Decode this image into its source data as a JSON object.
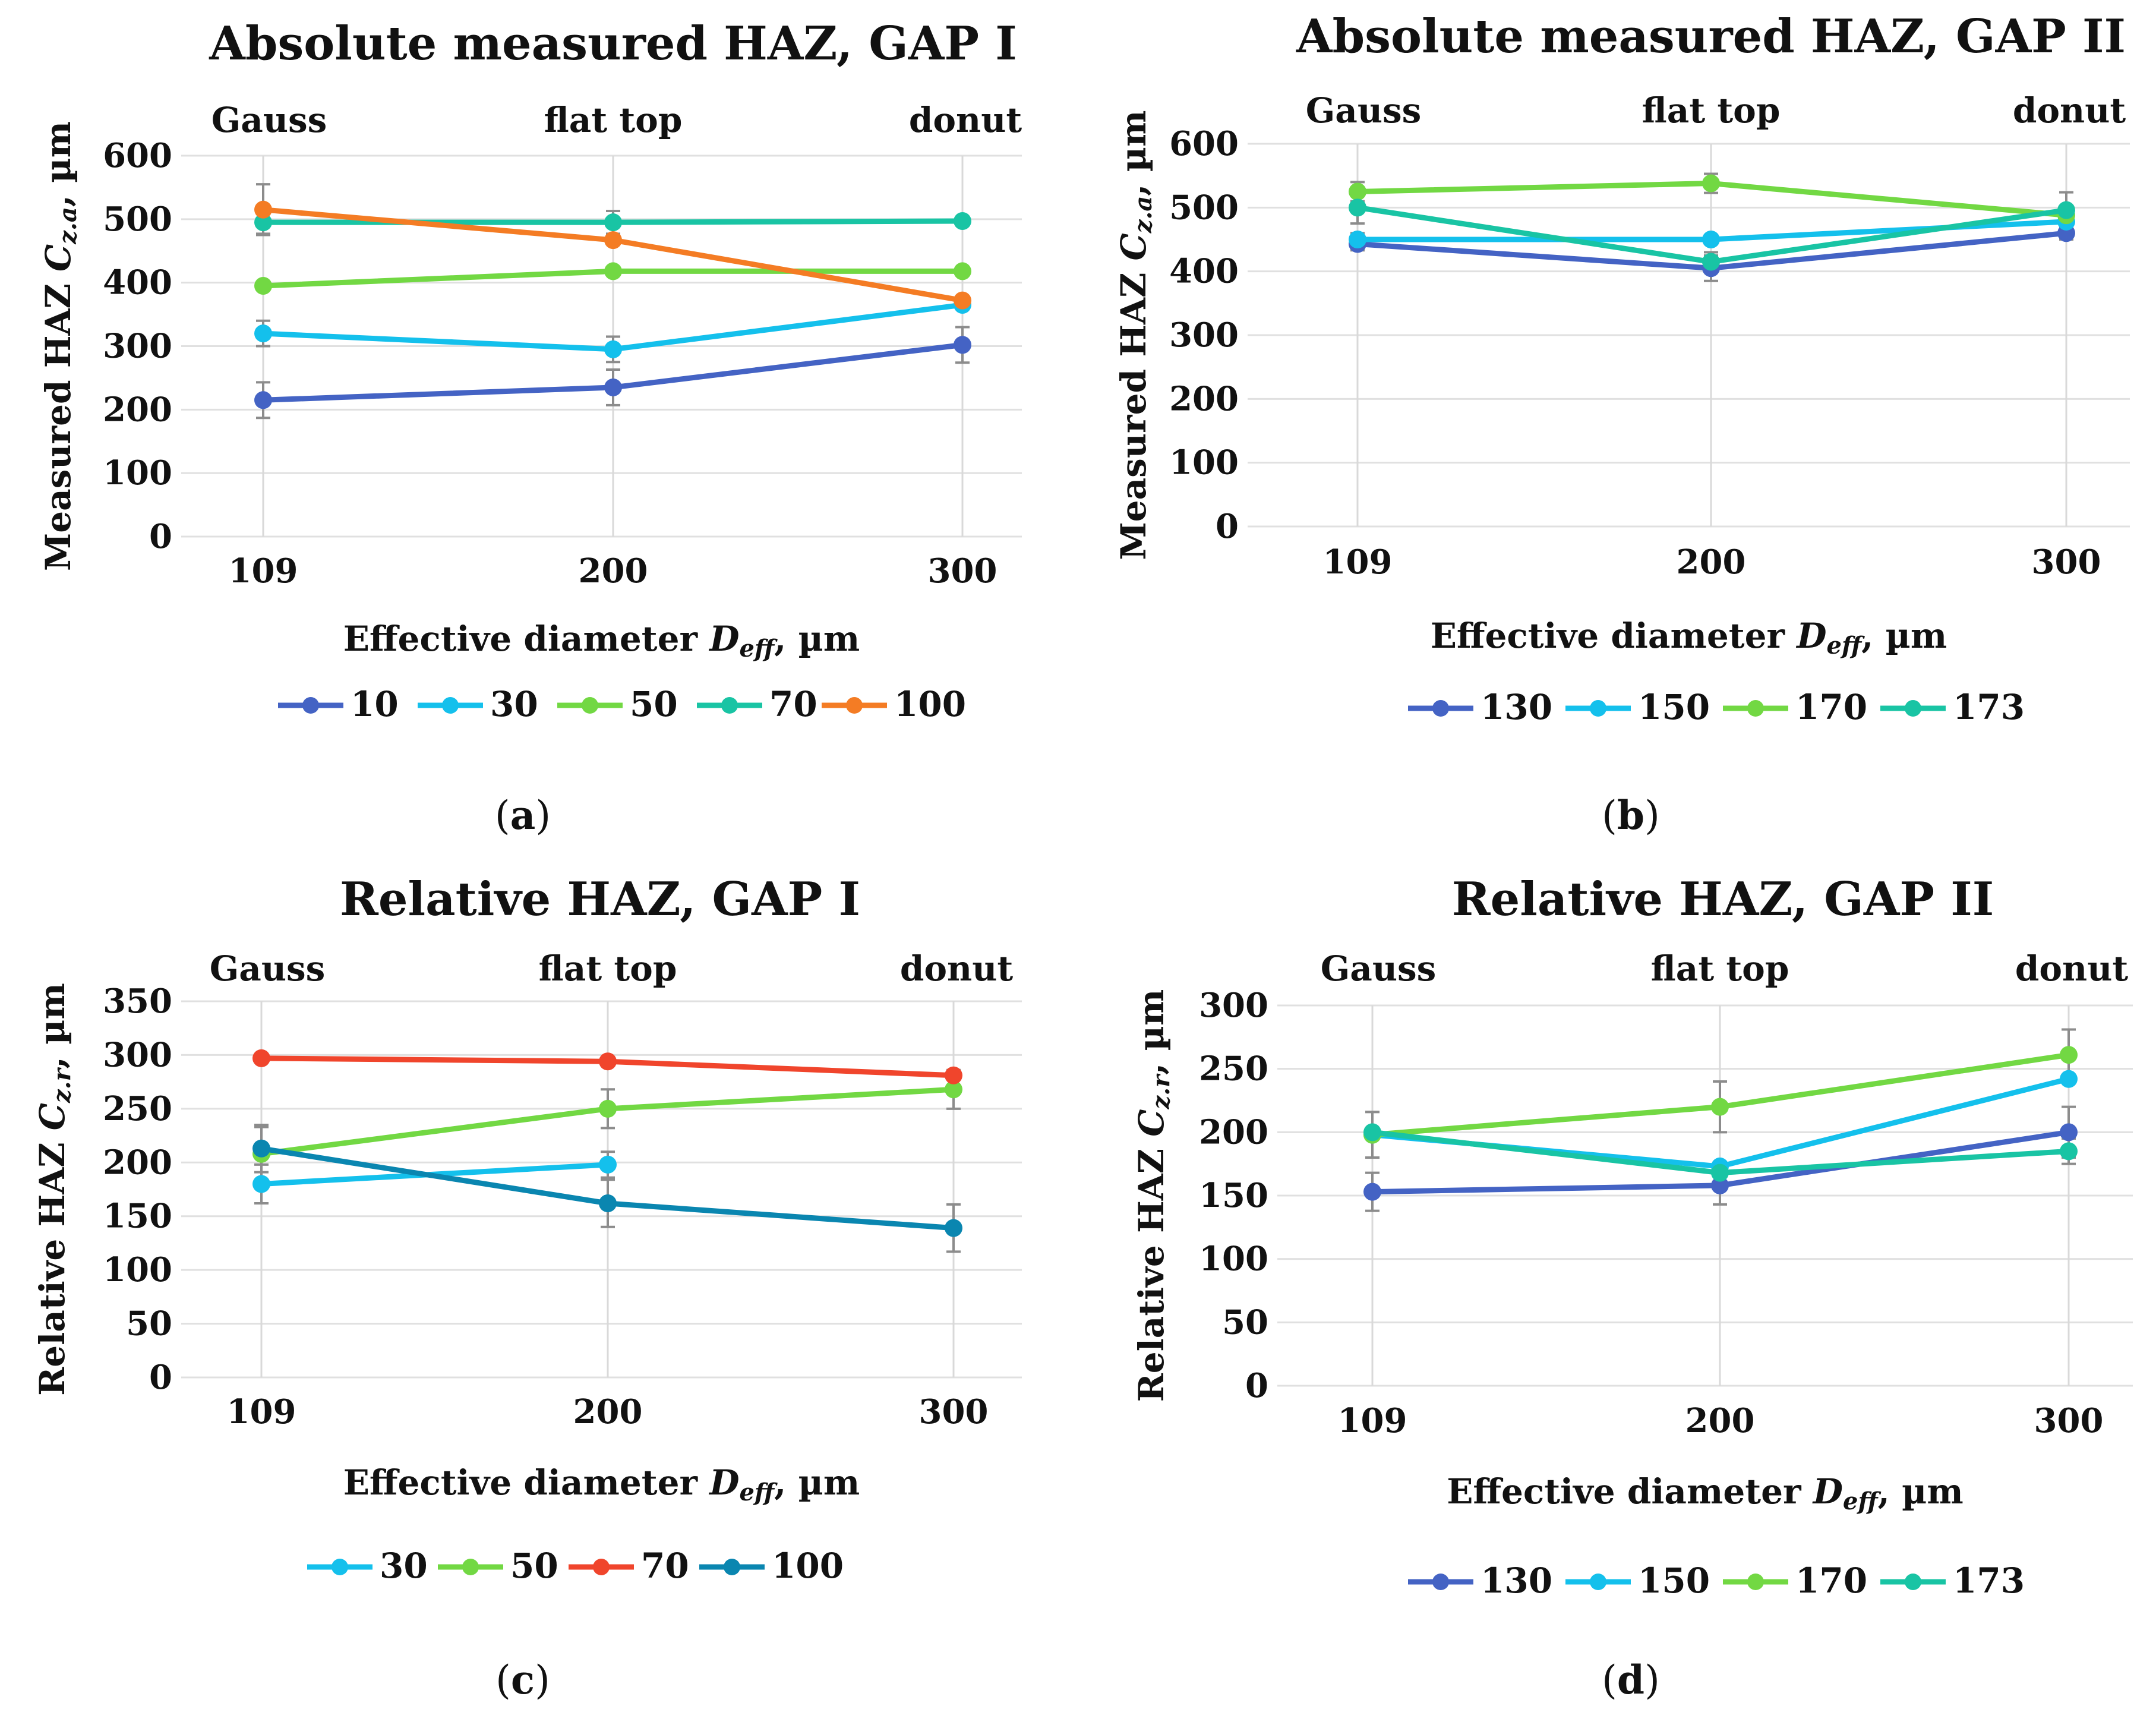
{
  "colors": {
    "c10": "#4463c4",
    "c30": "#14c0ec",
    "c50": "#72d843",
    "c70": "#19c4a4",
    "c100": "#f47c24",
    "c130": "#4463c4",
    "c150": "#14c0ec",
    "c170": "#72d843",
    "c173": "#19c4a4",
    "c70red": "#f0452c",
    "c100teal": "#0a86b0"
  },
  "figure": {
    "panels": [
      {
        "id": "a",
        "label_open": "(",
        "label_letter": "a",
        "label_close": ")"
      },
      {
        "id": "b",
        "label_open": "(",
        "label_letter": "b",
        "label_close": ")"
      },
      {
        "id": "c",
        "label_open": "(",
        "label_letter": "c",
        "label_close": ")"
      },
      {
        "id": "d",
        "label_open": "(",
        "label_letter": "d",
        "label_close": ")"
      }
    ]
  },
  "chart_data": [
    {
      "id": "a",
      "type": "line",
      "title": "Absolute measured HAZ, GAP I",
      "top_labels": [
        "Gauss",
        "flat top",
        "donut"
      ],
      "categories": [
        "109",
        "200",
        "300"
      ],
      "xlabel_pre": "Effective diameter ",
      "xlabel_var": "D",
      "xlabel_sub": "eff",
      "xlabel_post": ", µm",
      "ylabel_pre": "Measured HAZ ",
      "ylabel_var": "C",
      "ylabel_sub": "z.a",
      "ylabel_post": ", µm",
      "ylim": [
        0,
        600
      ],
      "yticks": [
        0,
        100,
        200,
        300,
        400,
        500,
        600
      ],
      "series": [
        {
          "name": "10",
          "color_key": "c10",
          "values": [
            215,
            235,
            302
          ],
          "errors": [
            28,
            28,
            28
          ]
        },
        {
          "name": "30",
          "color_key": "c30",
          "values": [
            320,
            295,
            365
          ],
          "errors": [
            20,
            20,
            0
          ]
        },
        {
          "name": "50",
          "color_key": "c50",
          "values": [
            395,
            418,
            418
          ],
          "errors": [
            0,
            0,
            0
          ]
        },
        {
          "name": "70",
          "color_key": "c70",
          "values": [
            495,
            495,
            497
          ],
          "errors": [
            18,
            18,
            0
          ]
        },
        {
          "name": "100",
          "color_key": "c100",
          "values": [
            515,
            467,
            372
          ],
          "errors": [
            40,
            0,
            0
          ]
        }
      ]
    },
    {
      "id": "b",
      "type": "line",
      "title": "Absolute measured HAZ, GAP II",
      "top_labels": [
        "Gauss",
        "flat top",
        "donut"
      ],
      "categories": [
        "109",
        "200",
        "300"
      ],
      "xlabel_pre": "Effective diameter ",
      "xlabel_var": "D",
      "xlabel_sub": "eff",
      "xlabel_post": ", µm",
      "ylabel_pre": "Measured HAZ ",
      "ylabel_var": "C",
      "ylabel_sub": "z.a",
      "ylabel_post": ", µm",
      "ylim": [
        0,
        600
      ],
      "yticks": [
        0,
        100,
        200,
        300,
        400,
        500,
        600
      ],
      "series": [
        {
          "name": "130",
          "color_key": "c130",
          "values": [
            443,
            405,
            460
          ],
          "errors": [
            10,
            20,
            10
          ]
        },
        {
          "name": "150",
          "color_key": "c150",
          "values": [
            450,
            450,
            478
          ],
          "errors": [
            10,
            0,
            10
          ]
        },
        {
          "name": "170",
          "color_key": "c170",
          "values": [
            525,
            538,
            488
          ],
          "errors": [
            15,
            15,
            10
          ]
        },
        {
          "name": "173",
          "color_key": "c173",
          "values": [
            500,
            415,
            496
          ],
          "errors": [
            25,
            15,
            28
          ]
        }
      ]
    },
    {
      "id": "c",
      "type": "line",
      "title": "Relative HAZ, GAP I",
      "top_labels": [
        "Gauss",
        "flat top",
        "donut"
      ],
      "categories": [
        "109",
        "200",
        "300"
      ],
      "xlabel_pre": "Effective diameter ",
      "xlabel_var": "D",
      "xlabel_sub": "eff",
      "xlabel_post": ", µm",
      "ylabel_pre": "Relative HAZ ",
      "ylabel_var": "C",
      "ylabel_sub": "z.r",
      "ylabel_post": ", µm",
      "ylim": [
        0,
        350
      ],
      "yticks": [
        0,
        50,
        100,
        150,
        200,
        250,
        300,
        350
      ],
      "series": [
        {
          "name": "30",
          "color_key": "c30",
          "values": [
            180,
            198,
            null
          ],
          "errors": [
            18,
            12,
            0
          ]
        },
        {
          "name": "50",
          "color_key": "c50",
          "values": [
            208,
            250,
            268
          ],
          "errors": [
            25,
            18,
            18
          ]
        },
        {
          "name": "70",
          "color_key": "c70red",
          "values": [
            297,
            294,
            281
          ],
          "errors": [
            0,
            0,
            0
          ]
        },
        {
          "name": "100",
          "color_key": "c100teal",
          "values": [
            213,
            162,
            139
          ],
          "errors": [
            22,
            22,
            22
          ]
        }
      ]
    },
    {
      "id": "d",
      "type": "line",
      "title": "Relative HAZ, GAP II",
      "top_labels": [
        "Gauss",
        "flat top",
        "donut"
      ],
      "categories": [
        "109",
        "200",
        "300"
      ],
      "xlabel_pre": "Effective diameter ",
      "xlabel_var": "D",
      "xlabel_sub": "eff",
      "xlabel_post": ", µm",
      "ylabel_pre": "Relative HAZ ",
      "ylabel_var": "C",
      "ylabel_sub": "z.r",
      "ylabel_post": ", µm",
      "ylim": [
        0,
        300
      ],
      "yticks": [
        0,
        50,
        100,
        150,
        200,
        250,
        300
      ],
      "series": [
        {
          "name": "130",
          "color_key": "c130",
          "values": [
            153,
            158,
            200
          ],
          "errors": [
            15,
            15,
            20
          ]
        },
        {
          "name": "150",
          "color_key": "c150",
          "values": [
            198,
            173,
            242
          ],
          "errors": [
            18,
            0,
            0
          ]
        },
        {
          "name": "170",
          "color_key": "c170",
          "values": [
            198,
            220,
            261
          ],
          "errors": [
            18,
            20,
            20
          ]
        },
        {
          "name": "173",
          "color_key": "c173",
          "values": [
            200,
            168,
            185
          ],
          "errors": [
            0,
            0,
            10
          ]
        }
      ]
    }
  ]
}
